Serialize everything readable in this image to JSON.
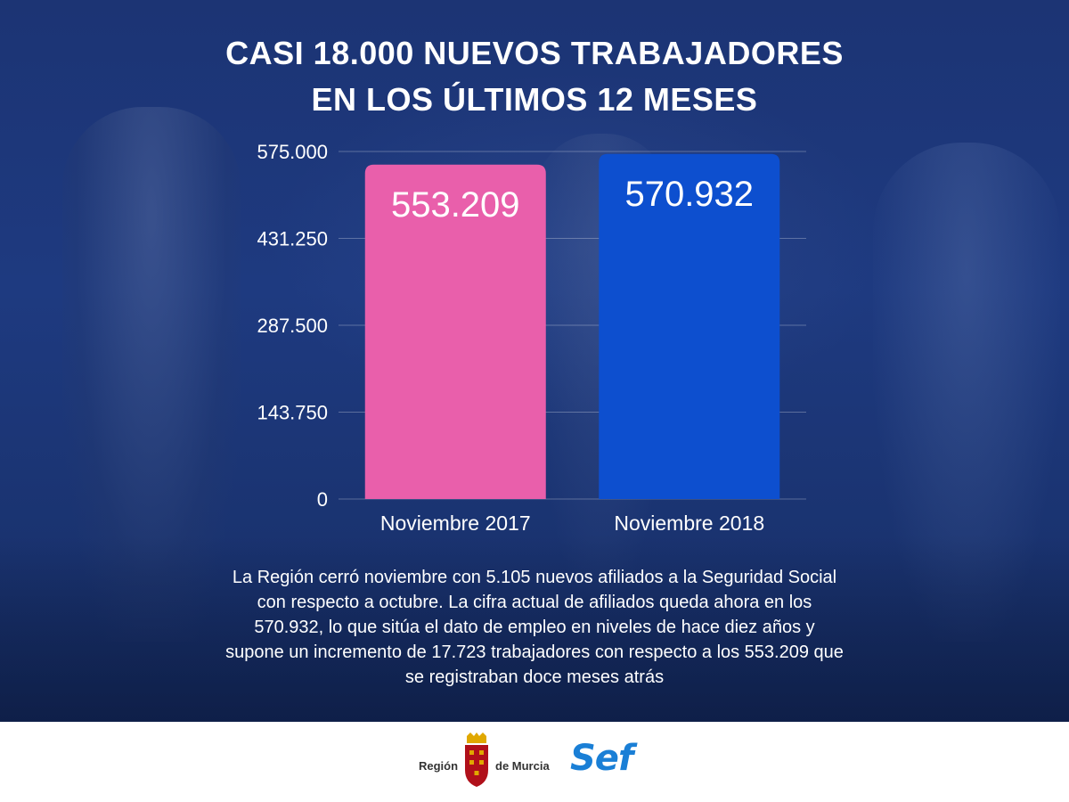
{
  "title": {
    "line1": "CASI 18.000 NUEVOS TRABAJADORES",
    "line2": "EN LOS ÚLTIMOS 12 MESES"
  },
  "chart_data": {
    "type": "bar",
    "categories": [
      "Noviembre 2017",
      "Noviembre 2018"
    ],
    "values": [
      553209,
      570932
    ],
    "value_labels": [
      "553.209",
      "570.932"
    ],
    "bar_colors": [
      "#e95fab",
      "#0d4fcf"
    ],
    "ylim": [
      0,
      575000
    ],
    "yticks": [
      0,
      143750,
      287500,
      431250,
      575000
    ],
    "ytick_labels": [
      "0",
      "143.750",
      "287.500",
      "431.250",
      "575.000"
    ],
    "grid": true
  },
  "description": "La Región cerró noviembre con 5.105 nuevos afiliados a la Seguridad Social con respecto a octubre. La cifra actual de afiliados queda ahora en los 570.932, lo que sitúa el dato de empleo en niveles de hace diez años y supone un incremento de 17.723 trabajadores con respecto a los 553.209 que se registraban doce meses atrás",
  "footer": {
    "region_logo_left": "Región",
    "region_logo_right": "de Murcia",
    "sef_logo": "Sef"
  },
  "colors": {
    "background": "#1c3474",
    "title": "#ffffff",
    "sef_blue": "#1a7fd6"
  }
}
